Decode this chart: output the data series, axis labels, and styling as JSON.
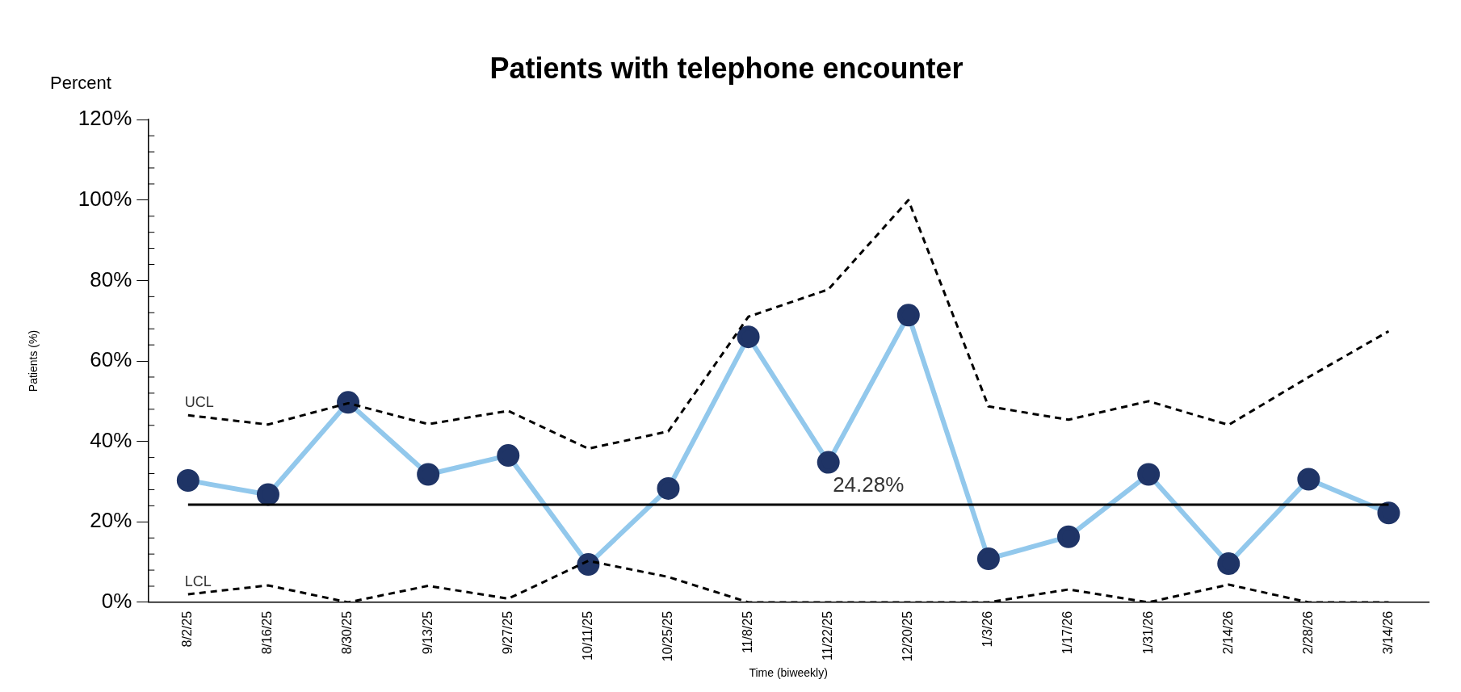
{
  "chart_data": {
    "type": "line",
    "title": "Patients with telephone encounter",
    "xlabel": "Time (biweekly)",
    "ylabel": "Patients (%)",
    "annotations": [
      "Percent"
    ],
    "categories": [
      "8/2/25",
      "8/16/25",
      "8/30/25",
      "9/13/25",
      "9/27/25",
      "10/11/25",
      "10/25/25",
      "11/8/25",
      "11/22/25",
      "12/20/25",
      "1/3/26",
      "1/17/26",
      "1/31/26",
      "2/14/26",
      "2/28/26",
      "3/14/26"
    ],
    "series": [
      {
        "color": "#92c8ec",
        "marker": "circle",
        "colors": [
          "#1f3466",
          "#1f3466",
          "#1f3466",
          "#1f3466",
          "#1f3466",
          "#1f3466",
          "#1f3466",
          "#1f3466",
          "#1f3466",
          "#1f3466",
          "#1f3466",
          "#1f3466",
          "#1f3466",
          "#1f3466",
          "#1f3466",
          "#1f3466"
        ],
        "values": [
          30.3,
          26.8,
          49.7,
          31.8,
          36.5,
          9.4,
          28.3,
          66,
          34.8,
          71.4,
          10.8,
          16.3,
          31.8,
          9.6,
          30.6,
          22.2
        ]
      },
      {
        "name": "UCL",
        "color": "#000000",
        "marker": "none",
        "line_style": "dashed",
        "values": [
          46.5,
          44.2,
          49.5,
          44.3,
          47.6,
          38.2,
          42.5,
          71,
          77.8,
          100,
          48.7,
          45.4,
          50,
          44.1,
          56,
          67.4
        ]
      },
      {
        "name": "LCL",
        "color": "#000000",
        "marker": "none",
        "line_style": "dashed",
        "values": [
          2,
          4.2,
          0,
          4.1,
          0.9,
          10.3,
          6.3,
          0,
          0,
          0,
          0,
          3.2,
          0,
          4.4,
          0,
          0
        ]
      }
    ],
    "ref_lines": [
      {
        "axis": "y",
        "value": 24.28,
        "label": "24.28%",
        "color": "#000000"
      }
    ],
    "ylim": [
      0,
      120
    ],
    "yticks": [
      {
        "value": 0,
        "label": "0%"
      },
      {
        "value": 20,
        "label": "20%"
      },
      {
        "value": 40,
        "label": "40%"
      },
      {
        "value": 60,
        "label": "60%"
      },
      {
        "value": 80,
        "label": "80%"
      },
      {
        "value": 100,
        "label": "100%"
      },
      {
        "value": 120,
        "label": "120%"
      }
    ],
    "grid": false,
    "legend": false
  }
}
